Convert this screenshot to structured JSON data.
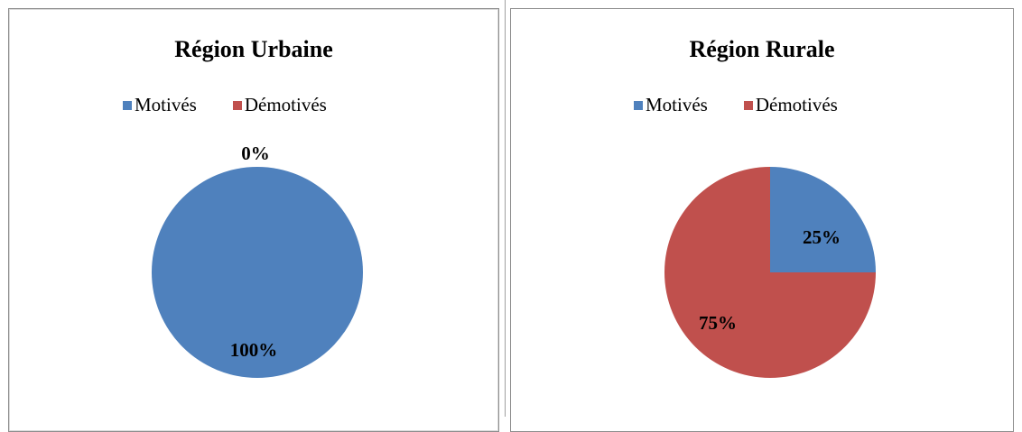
{
  "colors": {
    "motives": "#4f81bd",
    "demotives": "#c0504d"
  },
  "chart_data": [
    {
      "type": "pie",
      "title": "Région Urbaine",
      "legend": [
        "Motivés",
        "Démotivés"
      ],
      "legend_position": "top",
      "slices": [
        {
          "label": "Motivés",
          "value": 100,
          "display": "100%"
        },
        {
          "label": "Démotivés",
          "value": 0,
          "display": "0%"
        }
      ]
    },
    {
      "type": "pie",
      "title": "Région Rurale",
      "legend": [
        "Motivés",
        "Démotivés"
      ],
      "legend_position": "top",
      "slices": [
        {
          "label": "Motivés",
          "value": 25,
          "display": "25%"
        },
        {
          "label": "Démotivés",
          "value": 75,
          "display": "75%"
        }
      ]
    }
  ]
}
